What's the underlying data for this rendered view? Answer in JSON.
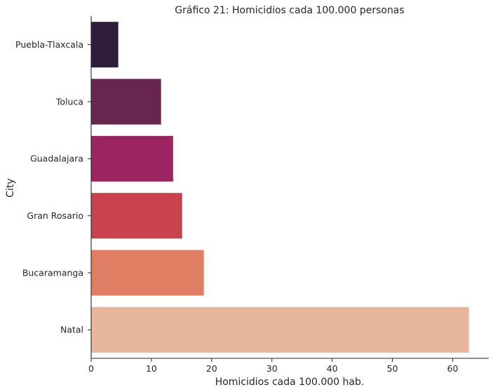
{
  "chart_data": {
    "type": "bar",
    "orientation": "horizontal",
    "title": "Gráfico 21: Homicidios cada 100.000 personas",
    "xlabel": "Homicidios cada 100.000 hab.",
    "ylabel": "City",
    "xlim": [
      0,
      66
    ],
    "xticks": [
      0,
      10,
      20,
      30,
      40,
      50,
      60
    ],
    "grid": false,
    "categories": [
      "Puebla-Tlaxcala",
      "Toluca",
      "Guadalajara",
      "Gran Rosario",
      "Bucaramanga",
      "Natal"
    ],
    "values": [
      4.5,
      11.6,
      13.6,
      15.1,
      18.7,
      62.7
    ],
    "colors": [
      "#2e1e3b",
      "#66264f",
      "#9c2460",
      "#c9434f",
      "#e07e63",
      "#e8b69b"
    ],
    "highlight": {
      "category": "Puebla-Tlaxcala",
      "color": "#ff0000"
    }
  }
}
